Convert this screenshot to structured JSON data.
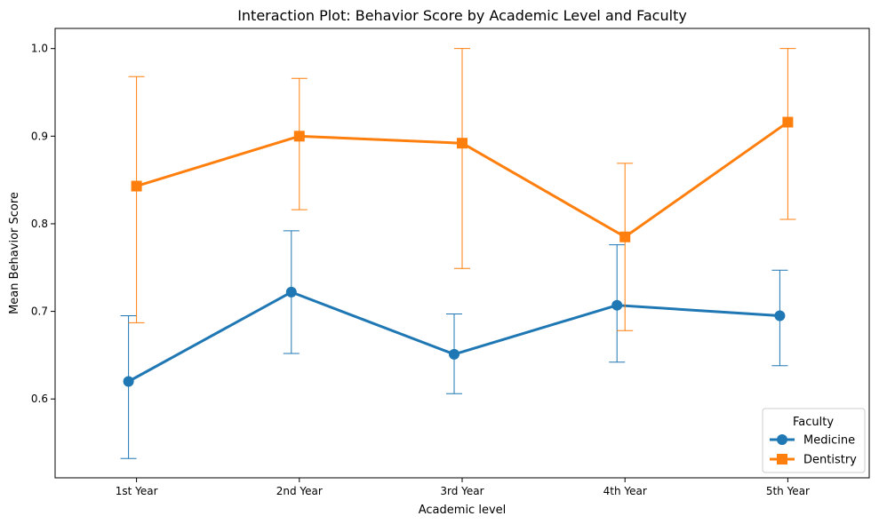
{
  "chart_data": {
    "type": "line",
    "title": "Interaction Plot: Behavior Score by Academic Level and Faculty",
    "xlabel": "Academic level",
    "ylabel": "Mean Behavior Score",
    "categories": [
      "1st Year",
      "2nd Year",
      "3rd Year",
      "4th Year",
      "5th Year"
    ],
    "ylim": [
      0.51,
      1.023
    ],
    "yticks": [
      0.6,
      0.7,
      0.8,
      0.9,
      1.0
    ],
    "ytick_labels": [
      "0.6",
      "0.7",
      "0.8",
      "0.9",
      "1.0"
    ],
    "grid": false,
    "legend": {
      "title": "Faculty",
      "placement": "bottom-right"
    },
    "series": [
      {
        "name": "Medicine",
        "color": "#1f77b4",
        "marker": "circle",
        "values": [
          0.62,
          0.722,
          0.651,
          0.707,
          0.695
        ],
        "err_low": [
          0.532,
          0.652,
          0.606,
          0.642,
          0.638
        ],
        "err_high": [
          0.695,
          0.792,
          0.697,
          0.776,
          0.747
        ]
      },
      {
        "name": "Dentistry",
        "color": "#ff7f0e",
        "marker": "square",
        "values": [
          0.843,
          0.9,
          0.892,
          0.785,
          0.916
        ],
        "err_low": [
          0.687,
          0.816,
          0.749,
          0.678,
          0.805
        ],
        "err_high": [
          0.968,
          0.966,
          1.0,
          0.869,
          1.0
        ]
      }
    ]
  }
}
